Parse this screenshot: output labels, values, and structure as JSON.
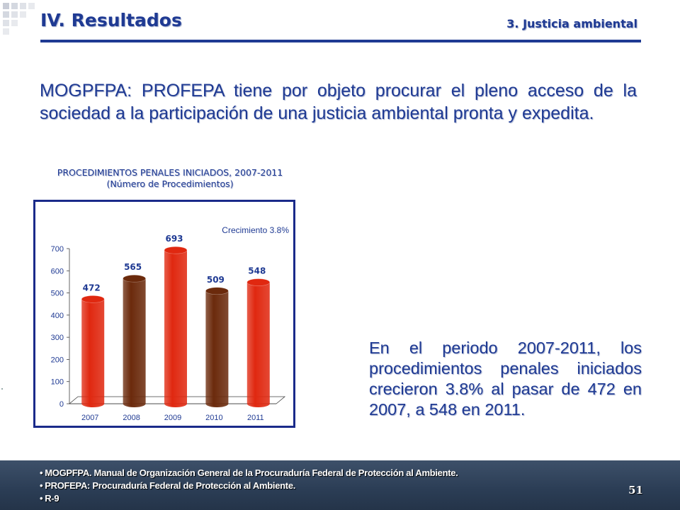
{
  "header": {
    "title": "IV. Resultados",
    "subtitle": "3. Justicia ambiental"
  },
  "intro_text": "MOGPFPA: PROFEPA tiene por objeto procurar el pleno acceso de la sociedad a la participación de una justicia ambiental pronta y expedita.",
  "chart_heading": {
    "line1": "PROCEDIMIENTOS PENALES INICIADOS, 2007-2011",
    "line2": "(Número de Procedimientos)"
  },
  "chart_data": {
    "type": "bar",
    "title": "PROCEDIMIENTOS PENALES INICIADOS, 2007-2011",
    "subtitle": "(Número de Procedimientos)",
    "categories": [
      "2007",
      "2008",
      "2009",
      "2010",
      "2011"
    ],
    "values": [
      472,
      565,
      693,
      509,
      548
    ],
    "ylim": [
      0,
      700
    ],
    "yticks": [
      0,
      100,
      200,
      300,
      400,
      500,
      600,
      700
    ],
    "bar_colors": [
      "#e02810",
      "#6b2a0c",
      "#e02810",
      "#6b2a0c",
      "#e02810"
    ],
    "annotation": "Crecimiento 3.8%",
    "style": "3d-cylinder",
    "grid": false
  },
  "summary_text": "En el periodo 2007-2011, los procedimientos penales iniciados crecieron 3.8% al pasar de 472 en 2007, a 548 en 2011.",
  "footer": {
    "notes": [
      "MOGPFPA. Manual de Organización General de la Procuraduría Federal de Protección al Ambiente.",
      "PROFEPA: Procuraduría Federal de Protección al Ambiente.",
      "R-9"
    ],
    "bullet": "•",
    "page_number": "51"
  },
  "colors": {
    "brand_blue": "#1f3a93",
    "chart_border": "#1a2a8a",
    "footer_bg": "#2b3d55"
  }
}
